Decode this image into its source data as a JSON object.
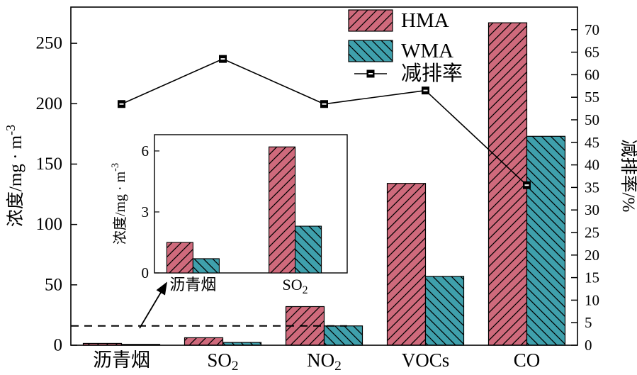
{
  "chart_data": {
    "type": "bar+line",
    "title": "",
    "categories": [
      {
        "segments": [
          {
            "text": "沥青烟"
          }
        ]
      },
      {
        "segments": [
          {
            "text": "SO"
          },
          {
            "text": "2",
            "sub": true
          }
        ]
      },
      {
        "segments": [
          {
            "text": "NO"
          },
          {
            "text": "2",
            "sub": true
          }
        ]
      },
      {
        "segments": [
          {
            "text": "VOCs"
          }
        ]
      },
      {
        "segments": [
          {
            "text": "CO"
          }
        ]
      }
    ],
    "bar_series": [
      {
        "name": "HMA",
        "color": "#cf6a7c",
        "hatch": "forward",
        "values": [
          1.5,
          6.2,
          32,
          134,
          267
        ]
      },
      {
        "name": "WMA",
        "color": "#3fa0ac",
        "hatch": "backward",
        "values": [
          0.7,
          2.3,
          16,
          57,
          173
        ]
      }
    ],
    "line_series": {
      "name": "减排率",
      "color": "#000000",
      "marker": "square-dash",
      "axis": "right",
      "values": [
        53.5,
        63.5,
        53.5,
        56.5,
        35.5
      ]
    },
    "left_axis": {
      "label_segments": [
        {
          "text": "浓度/mg · m"
        },
        {
          "text": "-3",
          "sup": true
        }
      ],
      "min": 0,
      "max": 280,
      "ticks": [
        0,
        50,
        100,
        150,
        200,
        250
      ]
    },
    "right_axis": {
      "label_segments": [
        {
          "text": "减排率/%"
        }
      ],
      "min": 0,
      "max": 75,
      "ticks": [
        0,
        5,
        10,
        15,
        20,
        25,
        30,
        35,
        40,
        45,
        50,
        55,
        60,
        65,
        70
      ]
    },
    "dashed_reference_line": {
      "value": 16
    },
    "inset": {
      "y_axis": {
        "label_segments": [
          {
            "text": "浓度/mg · m"
          },
          {
            "text": "-3",
            "sup": true
          }
        ],
        "min": 0,
        "max": 6.8,
        "ticks": [
          0,
          3,
          6
        ]
      },
      "categories": [
        {
          "segments": [
            {
              "text": "沥青烟"
            }
          ]
        },
        {
          "segments": [
            {
              "text": "SO"
            },
            {
              "text": "2",
              "sub": true
            }
          ]
        }
      ],
      "bar_series": [
        {
          "name": "HMA",
          "values": [
            1.5,
            6.2
          ]
        },
        {
          "name": "WMA",
          "values": [
            0.7,
            2.3
          ]
        }
      ]
    },
    "legend": [
      {
        "label": "HMA",
        "swatch": "hma-hatch"
      },
      {
        "label": "WMA",
        "swatch": "wma-hatch"
      },
      {
        "label": "减排率",
        "swatch": "line-marker"
      }
    ],
    "grid": false,
    "legend_position": "inside-top-center"
  }
}
